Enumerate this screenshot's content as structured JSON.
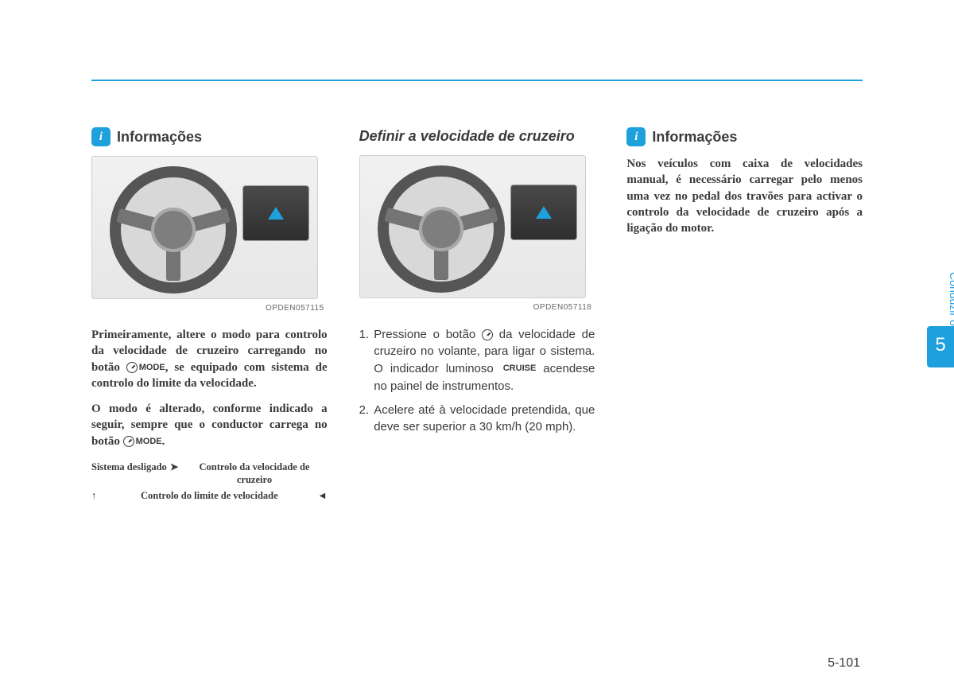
{
  "page": {
    "chapter_number": "5",
    "chapter_title": "Conduzir o veículo",
    "page_number": "5-101"
  },
  "col1": {
    "info_label": "Informações",
    "info_icon_glyph": "i",
    "fig_caption": "OPDEN057115",
    "para1_pre": "Primeiramente, altere o modo para controlo da velocidade de cruzeiro carregando no botão ",
    "mode_label": "MODE",
    "para1_post": ", se equipado com sistema de controlo do limite da velocidade.",
    "para2_pre": "O modo é alterado, conforme indicado a seguir, sempre que o conductor carrega no botão ",
    "para2_post": ".",
    "cycle": {
      "off": "Sistema desligado",
      "cvc": "Controlo da velocidade de cruzeiro",
      "clv": "Controlo do limite de velocidade"
    }
  },
  "col2": {
    "subtitle": "Definir a velocidade de cruzeiro",
    "fig_caption": "OPDEN057118",
    "item1_num": "1.",
    "item1_a": "Pressione o botão ",
    "item1_b": " da velocidade de cruzeiro no volante, para ligar o sistema. O indicador luminoso ",
    "cruise_label": "CRUISE",
    "item1_c": " acendese no painel de instrumentos.",
    "item2_num": "2.",
    "item2": "Acelere até à velocidade pretendida, que deve ser superior a 30 km/h (20 mph)."
  },
  "col3": {
    "info_label": "Informações",
    "info_icon_glyph": "i",
    "para": "Nos veículos com caixa de velocidades manual, é necessário carregar pelo menos uma vez no pedal dos travões para activar o controlo da velocidade de cruzeiro após a ligação do motor."
  },
  "colors": {
    "accent": "#1ea0dc",
    "text": "#3a3a3a"
  }
}
